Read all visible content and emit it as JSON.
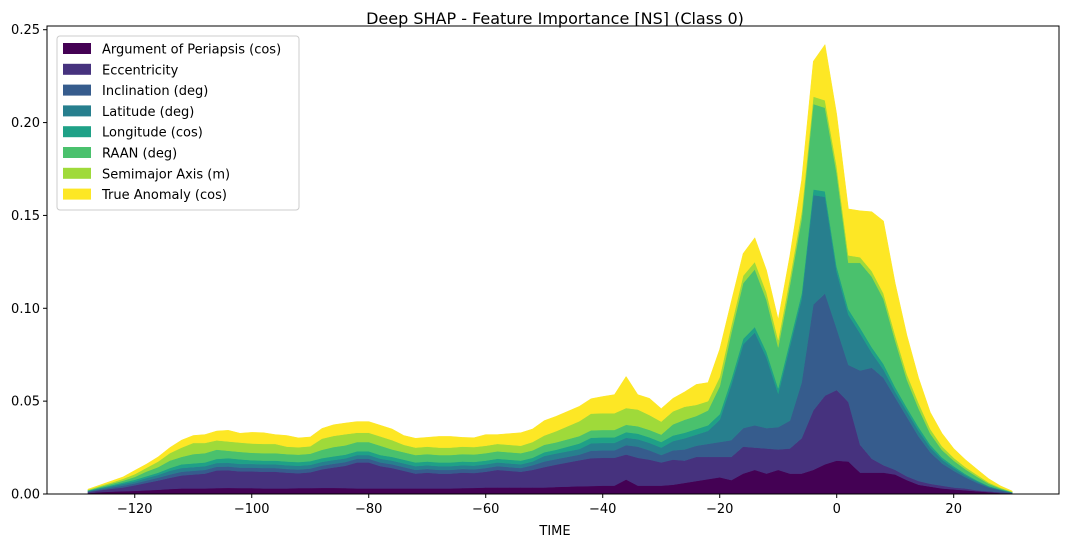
{
  "chart_data": {
    "type": "area",
    "stacked": true,
    "title": "Deep SHAP - Feature Importance [NS] (Class 0)",
    "xlabel": "TIME",
    "ylabel": "",
    "xlim": [
      -135,
      38
    ],
    "ylim": [
      0,
      0.252
    ],
    "xticks": [
      -120,
      -100,
      -80,
      -60,
      -40,
      -20,
      0,
      20
    ],
    "xtick_labels": [
      "−120",
      "−100",
      "−80",
      "−60",
      "−40",
      "−20",
      "0",
      "20"
    ],
    "yticks": [
      0,
      0.05,
      0.1,
      0.15,
      0.2,
      0.25
    ],
    "ytick_labels": [
      "0.00",
      "0.05",
      "0.10",
      "0.15",
      "0.20",
      "0.25"
    ],
    "grid": false,
    "legend_position": "top-left",
    "x": [
      -128,
      -126,
      -124,
      -122,
      -120,
      -118,
      -116,
      -114,
      -112,
      -110,
      -108,
      -106,
      -104,
      -102,
      -100,
      -98,
      -96,
      -94,
      -92,
      -90,
      -88,
      -86,
      -84,
      -82,
      -80,
      -78,
      -76,
      -74,
      -72,
      -70,
      -68,
      -66,
      -64,
      -62,
      -60,
      -58,
      -56,
      -54,
      -52,
      -50,
      -48,
      -46,
      -44,
      -42,
      -40,
      -38,
      -36,
      -34,
      -32,
      -30,
      -28,
      -26,
      -24,
      -22,
      -20,
      -18,
      -16,
      -14,
      -12,
      -10,
      -8,
      -6,
      -4,
      -2,
      0,
      2,
      4,
      6,
      8,
      10,
      12,
      14,
      16,
      18,
      20,
      22,
      24,
      26,
      28,
      30
    ],
    "series": [
      {
        "name": "Argument of Periapsis (cos)",
        "color": "#440154",
        "values": [
          0.0005,
          0.001,
          0.0013,
          0.0015,
          0.0017,
          0.002,
          0.0023,
          0.0027,
          0.003,
          0.003,
          0.003,
          0.0032,
          0.0033,
          0.0032,
          0.0032,
          0.003,
          0.003,
          0.003,
          0.0032,
          0.0032,
          0.0033,
          0.0033,
          0.0032,
          0.003,
          0.003,
          0.003,
          0.003,
          0.003,
          0.003,
          0.003,
          0.003,
          0.003,
          0.0032,
          0.0033,
          0.0035,
          0.0035,
          0.0035,
          0.0035,
          0.0035,
          0.0035,
          0.0038,
          0.004,
          0.0042,
          0.0043,
          0.0045,
          0.0045,
          0.0078,
          0.0045,
          0.0045,
          0.0045,
          0.005,
          0.006,
          0.007,
          0.008,
          0.009,
          0.0075,
          0.011,
          0.013,
          0.011,
          0.013,
          0.011,
          0.011,
          0.013,
          0.016,
          0.018,
          0.0175,
          0.0115,
          0.0115,
          0.0115,
          0.0105,
          0.0075,
          0.005,
          0.004,
          0.003,
          0.0025,
          0.002,
          0.0015,
          0.001,
          0.0005,
          0.0002
        ]
      },
      {
        "name": "Eccentricity",
        "color": "#46327e",
        "values": [
          0.0005,
          0.001,
          0.0015,
          0.002,
          0.003,
          0.004,
          0.005,
          0.006,
          0.007,
          0.0075,
          0.008,
          0.0095,
          0.0095,
          0.009,
          0.009,
          0.009,
          0.009,
          0.0085,
          0.008,
          0.0085,
          0.01,
          0.011,
          0.012,
          0.014,
          0.014,
          0.012,
          0.011,
          0.0095,
          0.008,
          0.0085,
          0.008,
          0.008,
          0.0083,
          0.008,
          0.0085,
          0.0095,
          0.009,
          0.0085,
          0.0095,
          0.011,
          0.012,
          0.013,
          0.014,
          0.015,
          0.015,
          0.015,
          0.0135,
          0.015,
          0.014,
          0.0125,
          0.0135,
          0.012,
          0.013,
          0.012,
          0.011,
          0.0125,
          0.0145,
          0.012,
          0.0135,
          0.011,
          0.0135,
          0.019,
          0.032,
          0.037,
          0.038,
          0.032,
          0.015,
          0.0075,
          0.004,
          0.0025,
          0.002,
          0.002,
          0.0015,
          0.0015,
          0.001,
          0.001,
          0.0005,
          0.0005,
          0.0005,
          0.0002
        ]
      },
      {
        "name": "Inclination (deg)",
        "color": "#365c8d",
        "values": [
          0.0003,
          0.0005,
          0.0007,
          0.001,
          0.001,
          0.0013,
          0.0015,
          0.0018,
          0.002,
          0.002,
          0.002,
          0.002,
          0.002,
          0.002,
          0.002,
          0.002,
          0.002,
          0.002,
          0.002,
          0.002,
          0.002,
          0.002,
          0.002,
          0.002,
          0.002,
          0.002,
          0.002,
          0.002,
          0.002,
          0.002,
          0.002,
          0.002,
          0.002,
          0.002,
          0.002,
          0.002,
          0.002,
          0.002,
          0.0025,
          0.003,
          0.003,
          0.003,
          0.003,
          0.004,
          0.004,
          0.004,
          0.005,
          0.006,
          0.005,
          0.004,
          0.005,
          0.006,
          0.006,
          0.007,
          0.008,
          0.009,
          0.01,
          0.012,
          0.011,
          0.012,
          0.015,
          0.03,
          0.057,
          0.055,
          0.033,
          0.02,
          0.04,
          0.049,
          0.047,
          0.039,
          0.032,
          0.024,
          0.017,
          0.012,
          0.009,
          0.006,
          0.004,
          0.002,
          0.001,
          0.0003
        ]
      },
      {
        "name": "Latitude (deg)",
        "color": "#277f8e",
        "values": [
          0.0003,
          0.0005,
          0.0007,
          0.001,
          0.001,
          0.0013,
          0.0015,
          0.002,
          0.002,
          0.002,
          0.002,
          0.002,
          0.002,
          0.002,
          0.002,
          0.002,
          0.002,
          0.002,
          0.002,
          0.002,
          0.002,
          0.002,
          0.002,
          0.002,
          0.002,
          0.002,
          0.002,
          0.002,
          0.002,
          0.002,
          0.002,
          0.002,
          0.002,
          0.002,
          0.002,
          0.002,
          0.002,
          0.002,
          0.002,
          0.003,
          0.003,
          0.003,
          0.003,
          0.004,
          0.004,
          0.004,
          0.004,
          0.004,
          0.004,
          0.004,
          0.005,
          0.006,
          0.006,
          0.007,
          0.012,
          0.03,
          0.045,
          0.05,
          0.038,
          0.018,
          0.04,
          0.045,
          0.059,
          0.052,
          0.0305,
          0.027,
          0.02,
          0.008,
          0.0045,
          0.003,
          0.003,
          0.003,
          0.0025,
          0.002,
          0.0015,
          0.001,
          0.0008,
          0.0005,
          0.0003,
          0.0001
        ]
      },
      {
        "name": "Longitude (cos)",
        "color": "#1fa187",
        "values": [
          0.0002,
          0.0003,
          0.0005,
          0.0007,
          0.001,
          0.001,
          0.0012,
          0.0015,
          0.002,
          0.002,
          0.002,
          0.0022,
          0.0025,
          0.0025,
          0.002,
          0.002,
          0.002,
          0.002,
          0.002,
          0.002,
          0.002,
          0.002,
          0.002,
          0.002,
          0.002,
          0.002,
          0.002,
          0.002,
          0.002,
          0.002,
          0.002,
          0.002,
          0.002,
          0.002,
          0.002,
          0.002,
          0.002,
          0.002,
          0.002,
          0.002,
          0.002,
          0.0025,
          0.003,
          0.003,
          0.003,
          0.003,
          0.003,
          0.003,
          0.003,
          0.003,
          0.003,
          0.003,
          0.003,
          0.003,
          0.003,
          0.003,
          0.003,
          0.003,
          0.003,
          0.003,
          0.003,
          0.003,
          0.003,
          0.003,
          0.003,
          0.003,
          0.003,
          0.003,
          0.003,
          0.0025,
          0.002,
          0.002,
          0.0015,
          0.0012,
          0.001,
          0.0008,
          0.0005,
          0.0003,
          0.0002,
          0.0001
        ]
      },
      {
        "name": "RAAN (deg)",
        "color": "#4ac16d",
        "values": [
          0.0002,
          0.0005,
          0.0008,
          0.001,
          0.0015,
          0.0025,
          0.003,
          0.004,
          0.004,
          0.005,
          0.005,
          0.005,
          0.004,
          0.004,
          0.004,
          0.004,
          0.004,
          0.004,
          0.004,
          0.004,
          0.0045,
          0.005,
          0.005,
          0.005,
          0.005,
          0.005,
          0.004,
          0.004,
          0.004,
          0.004,
          0.004,
          0.004,
          0.004,
          0.004,
          0.004,
          0.004,
          0.004,
          0.004,
          0.004,
          0.004,
          0.004,
          0.004,
          0.004,
          0.004,
          0.004,
          0.004,
          0.004,
          0.004,
          0.004,
          0.004,
          0.006,
          0.007,
          0.007,
          0.008,
          0.015,
          0.025,
          0.03,
          0.031,
          0.028,
          0.022,
          0.03,
          0.04,
          0.046,
          0.045,
          0.05,
          0.025,
          0.035,
          0.038,
          0.035,
          0.025,
          0.015,
          0.01,
          0.006,
          0.004,
          0.003,
          0.0025,
          0.002,
          0.0012,
          0.0005,
          0.0002
        ]
      },
      {
        "name": "Semimajor Axis (m)",
        "color": "#9fda3a",
        "values": [
          0.0003,
          0.0005,
          0.0007,
          0.001,
          0.0015,
          0.002,
          0.003,
          0.004,
          0.005,
          0.006,
          0.0055,
          0.005,
          0.005,
          0.005,
          0.005,
          0.005,
          0.005,
          0.004,
          0.004,
          0.004,
          0.006,
          0.006,
          0.006,
          0.005,
          0.005,
          0.005,
          0.005,
          0.004,
          0.004,
          0.004,
          0.004,
          0.004,
          0.004,
          0.004,
          0.004,
          0.004,
          0.004,
          0.004,
          0.0045,
          0.005,
          0.006,
          0.007,
          0.008,
          0.009,
          0.009,
          0.009,
          0.009,
          0.009,
          0.008,
          0.007,
          0.007,
          0.007,
          0.006,
          0.005,
          0.005,
          0.004,
          0.004,
          0.004,
          0.004,
          0.004,
          0.004,
          0.004,
          0.004,
          0.004,
          0.004,
          0.004,
          0.003,
          0.003,
          0.003,
          0.003,
          0.003,
          0.003,
          0.0025,
          0.002,
          0.0015,
          0.0012,
          0.001,
          0.0007,
          0.0004,
          0.0002
        ]
      },
      {
        "name": "True Anomaly (cos)",
        "color": "#fde725",
        "values": [
          0.0003,
          0.0005,
          0.0008,
          0.001,
          0.002,
          0.002,
          0.0025,
          0.003,
          0.004,
          0.004,
          0.0045,
          0.005,
          0.006,
          0.005,
          0.006,
          0.006,
          0.005,
          0.006,
          0.005,
          0.005,
          0.0055,
          0.006,
          0.006,
          0.006,
          0.006,
          0.006,
          0.006,
          0.005,
          0.005,
          0.005,
          0.006,
          0.006,
          0.005,
          0.005,
          0.006,
          0.005,
          0.006,
          0.007,
          0.007,
          0.008,
          0.008,
          0.008,
          0.008,
          0.008,
          0.009,
          0.01,
          0.017,
          0.008,
          0.009,
          0.007,
          0.007,
          0.008,
          0.011,
          0.01,
          0.015,
          0.013,
          0.012,
          0.013,
          0.012,
          0.011,
          0.012,
          0.017,
          0.019,
          0.03,
          0.028,
          0.025,
          0.025,
          0.032,
          0.039,
          0.028,
          0.021,
          0.0135,
          0.009,
          0.007,
          0.005,
          0.004,
          0.003,
          0.002,
          0.001,
          0.0003
        ]
      }
    ]
  }
}
